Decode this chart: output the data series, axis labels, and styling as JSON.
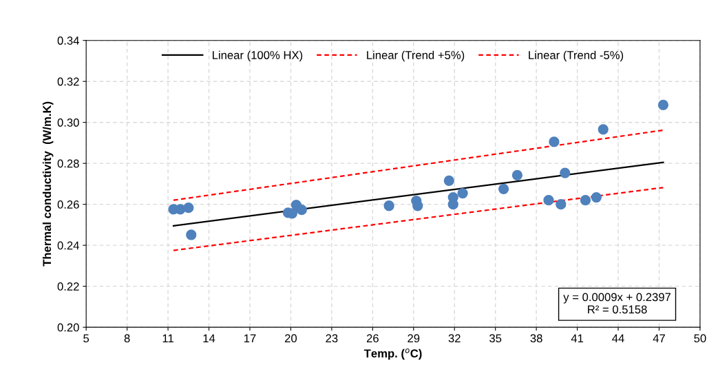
{
  "chart_data": {
    "type": "scatter",
    "xlabel": "Temp. ($^{o}$C)",
    "ylabel": "Thermal conductivity  (W/m.K)",
    "xlim": [
      5,
      50
    ],
    "xticks": [
      5,
      8,
      11,
      14,
      17,
      20,
      23,
      26,
      29,
      32,
      35,
      38,
      41,
      44,
      47,
      50
    ],
    "ylim": [
      0.2,
      0.34
    ],
    "yticks": [
      {
        "value": 0.2,
        "label": "0.20"
      },
      {
        "value": 0.22,
        "label": "0.22"
      },
      {
        "value": 0.24,
        "label": "0.24"
      },
      {
        "value": 0.26,
        "label": "0.26"
      },
      {
        "value": 0.28,
        "label": "0.28"
      },
      {
        "value": 0.3,
        "label": "0.30"
      },
      {
        "value": 0.32,
        "label": "0.32"
      },
      {
        "value": 0.34,
        "label": "0.34"
      }
    ],
    "grid": true,
    "legend": "top",
    "series": [
      {
        "color": "#4f81bd",
        "marker": "circle",
        "x": [
          11.4,
          11.9,
          12.5,
          12.7,
          19.8,
          20.1,
          20.4,
          20.8,
          27.2,
          29.2,
          29.3,
          31.6,
          31.9,
          31.9,
          32.6,
          35.6,
          36.6,
          39.3,
          40.1,
          38.9,
          39.8,
          41.6,
          42.4,
          42.9,
          47.3
        ],
        "values": [
          0.2576,
          0.2576,
          0.2583,
          0.2451,
          0.2559,
          0.2556,
          0.2597,
          0.2573,
          0.2593,
          0.2617,
          0.2593,
          0.2715,
          0.2634,
          0.26,
          0.2654,
          0.2675,
          0.2742,
          0.2905,
          0.2753,
          0.262,
          0.26,
          0.262,
          0.2634,
          0.2966,
          0.3085
        ]
      },
      {
        "type": "line",
        "name": "Linear (100% HX)",
        "color": "#000000",
        "line_style": "solid",
        "x": [
          11.4,
          47.3
        ],
        "values": [
          0.2495,
          0.2805
        ]
      },
      {
        "type": "line",
        "name": "Linear (Trend +5%)",
        "color": "#ff0000",
        "line_style": "dashed",
        "x": [
          11.4,
          47.3
        ],
        "values": [
          0.262,
          0.2962
        ]
      },
      {
        "type": "line",
        "name": "Linear (Trend -5%)",
        "color": "#ff0000",
        "line_style": "dashed",
        "x": [
          11.4,
          47.3
        ],
        "values": [
          0.2375,
          0.2682
        ]
      }
    ],
    "annotations": [
      "y = 0.0009x + 0.2397\nR² = 0.5158"
    ]
  }
}
